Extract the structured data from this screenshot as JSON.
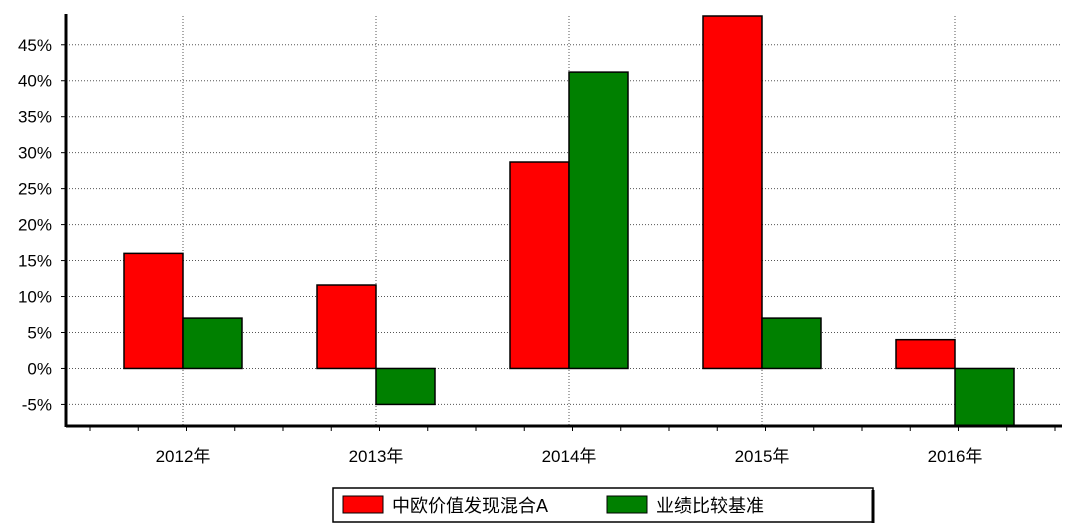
{
  "chart_data": {
    "type": "bar",
    "categories": [
      "2012年",
      "2013年",
      "2014年",
      "2015年",
      "2016年"
    ],
    "series": [
      {
        "name": "中欧价值发现混合A",
        "color": "#ff0000",
        "values": [
          16.0,
          11.6,
          28.7,
          49.0,
          4.0
        ]
      },
      {
        "name": "业绩比较基准",
        "color": "#008000",
        "values": [
          7.0,
          -5.0,
          41.2,
          7.0,
          -8.0
        ]
      }
    ],
    "yticks": [
      "-5%",
      "0%",
      "5%",
      "10%",
      "15%",
      "20%",
      "25%",
      "30%",
      "35%",
      "40%",
      "45%"
    ],
    "ylim": [
      -8,
      49
    ],
    "grid": true,
    "legend_position": "bottom-center",
    "title": "",
    "xlabel": "",
    "ylabel": ""
  }
}
